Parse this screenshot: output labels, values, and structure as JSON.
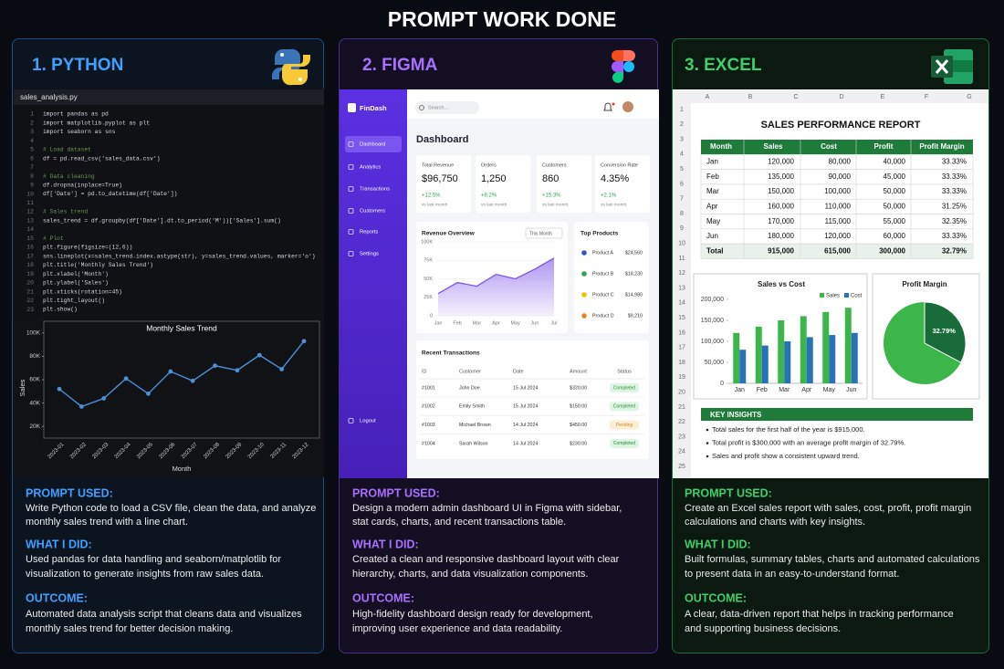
{
  "title": "PROMPT WORK DONE",
  "python": {
    "heading": "1. PYTHON",
    "file": "sales_analysis.py",
    "code": [
      {
        "n": 1,
        "text": "import pandas as pd"
      },
      {
        "n": 2,
        "text": "import matplotlib.pyplot as plt"
      },
      {
        "n": 3,
        "text": "import seaborn as sns"
      },
      {
        "n": 4
      },
      {
        "n": 5,
        "text": "# Load dataset"
      },
      {
        "n": 6,
        "text": "df = pd.read_csv('sales_data.csv')"
      },
      {
        "n": 7
      },
      {
        "n": 8,
        "text": "# Data cleaning"
      },
      {
        "n": 9,
        "text": "df.dropna(inplace=True)"
      },
      {
        "n": 10,
        "text": "df['Date'] = pd.to_datetime(df['Date'])"
      },
      {
        "n": 11
      },
      {
        "n": 12,
        "text": "# Sales trend"
      },
      {
        "n": 13,
        "text": "sales_trend = df.groupby(df['Date'].dt.to_period('M'))['Sales'].sum()"
      },
      {
        "n": 14
      },
      {
        "n": 15,
        "text": "# Plot"
      },
      {
        "n": 16,
        "text": "plt.figure(figsize=(12,6))"
      },
      {
        "n": 17,
        "text": "sns.lineplot(x=sales_trend.index.astype(str), y=sales_trend.values, marker='o')"
      },
      {
        "n": 18,
        "text": "plt.title('Monthly Sales Trend')"
      },
      {
        "n": 19,
        "text": "plt.xlabel('Month')"
      },
      {
        "n": 20,
        "text": "plt.ylabel('Sales')"
      },
      {
        "n": 21,
        "text": "plt.xticks(rotation=45)"
      },
      {
        "n": 22,
        "text": "plt.tight_layout()"
      },
      {
        "n": 23,
        "text": "plt.show()"
      }
    ],
    "chart_data": {
      "type": "line",
      "title": "Monthly Sales Trend",
      "x_label": "Month",
      "y_label": "Sales",
      "categories": [
        "2023-01",
        "2023-02",
        "2023-03",
        "2023-04",
        "2023-05",
        "2023-06",
        "2023-07",
        "2023-08",
        "2023-09",
        "2023-10",
        "2023-11",
        "2023-12"
      ],
      "values": [
        52000,
        37000,
        44000,
        61000,
        48000,
        67000,
        59000,
        72000,
        68000,
        81000,
        69000,
        93000
      ],
      "color": "#4f8fd6",
      "ylim": [
        10000,
        110000
      ],
      "yticks": [
        {
          "value": 20000,
          "label": "20K"
        },
        {
          "value": 40000,
          "label": "40K"
        },
        {
          "value": 60000,
          "label": "60K"
        },
        {
          "value": 80000,
          "label": "80K"
        },
        {
          "value": 100000,
          "label": "100K"
        }
      ],
      "grid": false
    },
    "sections": [
      {
        "label": "PROMPT USED:",
        "lines": [
          "Write Python code to load a CSV file, clean the data, and analyze",
          "monthly sales trend with a line chart."
        ]
      },
      {
        "label": "WHAT I DID:",
        "lines": [
          "Used pandas for data handling and seaborn/matplotlib for",
          "visualization to generate insights from raw sales data."
        ]
      },
      {
        "label": "OUTCOME:",
        "lines": [
          "Automated data analysis script that cleans data and visualizes",
          "monthly sales trend for better decision making."
        ]
      }
    ]
  },
  "figma": {
    "heading": "2. FIGMA",
    "app": {
      "brand": "FinDash",
      "nav": [
        "Dashboard",
        "Analytics",
        "Transactions",
        "Customers",
        "Reports",
        "Settings"
      ],
      "logout": "Logout",
      "search": "Search...",
      "page_title": "Dashboard",
      "stats": [
        {
          "label": "Total Revenue",
          "value": "$96,750",
          "change": "+12.5%",
          "note": "vs last month"
        },
        {
          "label": "Orders",
          "value": "1,250",
          "change": "+8.2%",
          "note": "vs last month"
        },
        {
          "label": "Customers",
          "value": "860",
          "change": "+15.3%",
          "note": "vs last month"
        },
        {
          "label": "Conversion Rate",
          "value": "4.35%",
          "change": "+2.1%",
          "note": "vs last month"
        }
      ],
      "revenue": {
        "type": "area",
        "title": "Revenue Overview",
        "period": "This Month",
        "categories": [
          "Jan",
          "Feb",
          "Mar",
          "Apr",
          "May",
          "Jun",
          "Jul"
        ],
        "values": [
          30000,
          45000,
          40000,
          56000,
          50000,
          63000,
          78000
        ],
        "color": "#7b52e8",
        "ylim": [
          0,
          100000
        ],
        "yticks": [
          0,
          {
            "value": 25000,
            "label": "25K"
          },
          {
            "value": 50000,
            "label": "50K"
          },
          {
            "value": 75000,
            "label": "75K"
          },
          {
            "value": 100000,
            "label": "100K"
          }
        ],
        "grid": true
      },
      "top_products": {
        "title": "Top Products",
        "items": [
          {
            "name": "Product A",
            "value": "$24,560",
            "color": "#3b4fd8"
          },
          {
            "name": "Product B",
            "value": "$18,230",
            "color": "#2ea44f"
          },
          {
            "name": "Product C",
            "value": "$14,980",
            "color": "#f2c200"
          },
          {
            "name": "Product D",
            "value": "$9,210",
            "color": "#e8832a"
          }
        ]
      },
      "transactions": {
        "title": "Recent Transactions",
        "columns": [
          "ID",
          "Customer",
          "Date",
          "Amount",
          "Status"
        ],
        "rows": [
          [
            "#1001",
            "John Doe",
            "15 Jul 2024",
            "$320.00",
            "Completed"
          ],
          [
            "#1002",
            "Emily Smith",
            "15 Jul 2024",
            "$150.00",
            "Completed"
          ],
          [
            "#1003",
            "Michael Brown",
            "14 Jul 2024",
            "$450.00",
            "Pending"
          ],
          [
            "#1004",
            "Sarah Wilson",
            "14 Jul 2024",
            "$230.00",
            "Completed"
          ]
        ]
      }
    },
    "sections": [
      {
        "label": "PROMPT USED:",
        "lines": [
          "Design a modern admin dashboard UI in Figma with sidebar,",
          "stat cards, charts, and recent transactions table."
        ]
      },
      {
        "label": "WHAT I DID:",
        "lines": [
          "Created a clean and responsive dashboard layout with clear",
          "hierarchy, charts, and data visualization components."
        ]
      },
      {
        "label": "OUTCOME:",
        "lines": [
          "High-fidelity dashboard design ready for development,",
          "improving user experience and data readability."
        ]
      }
    ]
  },
  "excel": {
    "heading": "3. EXCEL",
    "columns": [
      "A",
      "B",
      "C",
      "D",
      "E",
      "F",
      "G"
    ],
    "rows": [
      1,
      2,
      3,
      4,
      5,
      6,
      7,
      8,
      9,
      10,
      11,
      12,
      13,
      14,
      15,
      16,
      17,
      18,
      19,
      20,
      21,
      22,
      23,
      24,
      25
    ],
    "report": {
      "title": "SALES PERFORMANCE REPORT",
      "header": [
        "Month",
        "Sales",
        "Cost",
        "Profit",
        "Profit Margin"
      ],
      "rows": [
        [
          "Jan",
          "120,000",
          "80,000",
          "40,000",
          "33.33%"
        ],
        [
          "Feb",
          "135,000",
          "90,000",
          "45,000",
          "33.33%"
        ],
        [
          "Mar",
          "150,000",
          "100,000",
          "50,000",
          "33.33%"
        ],
        [
          "Apr",
          "160,000",
          "110,000",
          "50,000",
          "31.25%"
        ],
        [
          "May",
          "170,000",
          "115,000",
          "55,000",
          "32.35%"
        ],
        [
          "Jun",
          "180,000",
          "120,000",
          "60,000",
          "33.33%"
        ]
      ],
      "total": [
        "Total",
        "915,000",
        "615,000",
        "300,000",
        "32.79%"
      ]
    },
    "sales_chart": {
      "type": "bar",
      "title": "Sales vs Cost",
      "categories": [
        "Jan",
        "Feb",
        "Mar",
        "Apr",
        "May",
        "Jun"
      ],
      "series": [
        {
          "name": "Sales",
          "color": "#3cb54a",
          "values": [
            120000,
            135000,
            150000,
            160000,
            170000,
            180000
          ]
        },
        {
          "name": "Cost",
          "color": "#2a72b8",
          "values": [
            80000,
            90000,
            100000,
            110000,
            115000,
            120000
          ]
        }
      ],
      "ylim": [
        0,
        200000
      ],
      "yticks": [
        0,
        {
          "value": 50000,
          "label": "50,000"
        },
        {
          "value": 100000,
          "label": "100,000"
        },
        {
          "value": 150000,
          "label": "150,000"
        },
        {
          "value": 200000,
          "label": "200,000"
        }
      ],
      "legend": "top-right",
      "grid": false
    },
    "pie": {
      "type": "pie",
      "title": "Profit Margin",
      "values": [
        32.79
      ],
      "value_labels": [
        "32.79%"
      ],
      "colors": [
        "#1a6b3a"
      ],
      "rest_color": "#3cb54a"
    },
    "insights": {
      "title": "KEY INSIGHTS",
      "items": [
        "Total sales for the first half of the year is $915,000.",
        "Total profit is $300,000 with an average profit margin of 32.79%.",
        "Sales and profit show a consistent upward trend."
      ]
    },
    "sections": [
      {
        "label": "PROMPT USED:",
        "lines": [
          "Create an Excel sales report with sales, cost, profit, profit margin",
          "calculations and charts with key insights."
        ]
      },
      {
        "label": "WHAT I DID:",
        "lines": [
          "Built formulas, summary tables, charts and automated calculations",
          "to present data in an easy-to-understand format."
        ]
      },
      {
        "label": "OUTCOME:",
        "lines": [
          "A clear, data-driven report that helps in tracking performance",
          "and supporting business decisions."
        ]
      }
    ]
  }
}
